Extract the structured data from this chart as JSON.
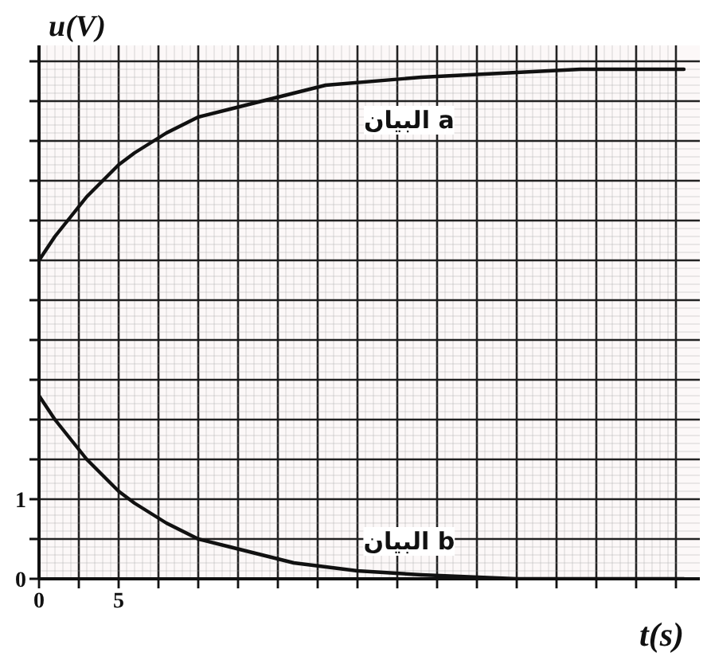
{
  "chart_data": {
    "type": "line",
    "xlabel": "t(s)",
    "ylabel": "u(V)",
    "xlim": [
      0,
      41.5
    ],
    "ylim": [
      0,
      6.7
    ],
    "xticks": [
      0,
      {
        "value": 2.5,
        "label": null
      },
      5,
      {
        "value": 7.5,
        "label": null
      },
      {
        "value": 10,
        "label": null
      },
      {
        "value": 12.5,
        "label": null
      },
      {
        "value": 15,
        "label": null
      },
      {
        "value": 17.5,
        "label": null
      },
      {
        "value": 20,
        "label": null
      },
      {
        "value": 22.5,
        "label": null
      },
      {
        "value": 25,
        "label": null
      },
      {
        "value": 27.5,
        "label": null
      },
      {
        "value": 30,
        "label": null
      },
      {
        "value": 32.5,
        "label": null
      },
      {
        "value": 35,
        "label": null
      },
      {
        "value": 37.5,
        "label": null
      },
      {
        "value": 40,
        "label": null
      }
    ],
    "yticks": [
      0,
      {
        "value": 0.5,
        "label": null
      },
      1,
      {
        "value": 1.5,
        "label": null
      },
      {
        "value": 2,
        "label": null
      },
      {
        "value": 2.5,
        "label": null
      },
      {
        "value": 3,
        "label": null
      },
      {
        "value": 3.5,
        "label": null
      },
      {
        "value": 4,
        "label": null
      },
      {
        "value": 4.5,
        "label": null
      },
      {
        "value": 5,
        "label": null
      },
      {
        "value": 5.5,
        "label": null
      },
      {
        "value": 6,
        "label": null
      },
      {
        "value": 6.5,
        "label": null
      }
    ],
    "grid": true,
    "series": [
      {
        "name": "البيان a",
        "color": "#111111",
        "x": [
          0,
          1,
          2,
          3,
          4,
          5,
          6,
          8,
          10,
          12,
          14,
          18,
          24,
          34,
          40.5
        ],
        "values": [
          4.0,
          4.3,
          4.55,
          4.8,
          5.0,
          5.2,
          5.35,
          5.6,
          5.8,
          5.9,
          6.0,
          6.2,
          6.3,
          6.4,
          6.4
        ]
      },
      {
        "name": "البيان b",
        "color": "#111111",
        "x": [
          0,
          1,
          2,
          3,
          4,
          5,
          6,
          8,
          10,
          12,
          14,
          16,
          20,
          24,
          30,
          40.5
        ],
        "values": [
          2.3,
          2.0,
          1.75,
          1.5,
          1.3,
          1.1,
          0.95,
          0.7,
          0.5,
          0.4,
          0.3,
          0.2,
          0.1,
          0.05,
          0.0,
          0.0
        ]
      }
    ]
  }
}
